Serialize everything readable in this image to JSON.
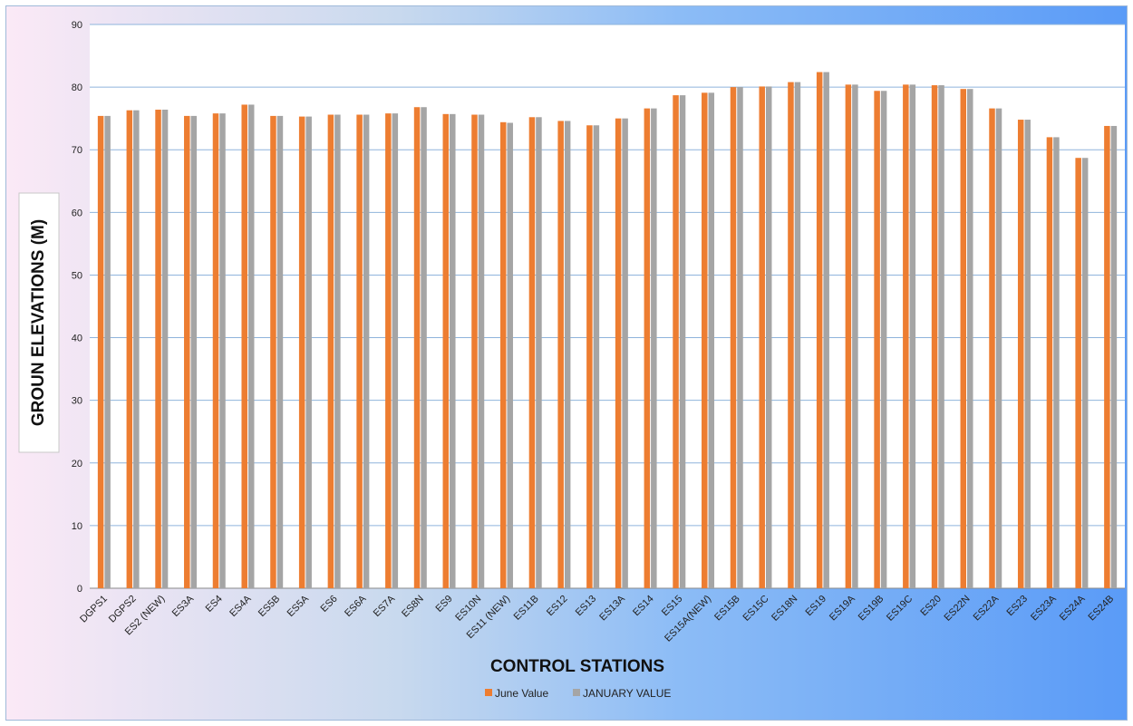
{
  "chart_data": {
    "type": "bar",
    "categories": [
      "DGPS1",
      "DGPS2",
      "ES2 (NEW)",
      "ES3A",
      "ES4",
      "ES4A",
      "ES5B",
      "ES5A",
      "ES6",
      "ES6A",
      "ES7A",
      "ES8N",
      "ES9",
      "ES10N",
      "ES11 (NEW)",
      "ES11B",
      "ES12",
      "ES13",
      "ES13A",
      "ES14",
      "ES15",
      "ES15A(NEW)",
      "ES15B",
      "ES15C",
      "ES18N",
      "ES19",
      "ES19A",
      "ES19B",
      "ES19C",
      "ES20",
      "ES22N",
      "ES22A",
      "ES23",
      "ES23A",
      "ES24A",
      "ES24B"
    ],
    "series": [
      {
        "name": "June Value",
        "color": "#ed7d31",
        "values": [
          75.4,
          76.3,
          76.4,
          75.4,
          75.8,
          77.2,
          75.4,
          75.3,
          75.6,
          75.6,
          75.8,
          76.8,
          75.7,
          75.6,
          74.4,
          75.2,
          74.6,
          73.9,
          75.0,
          76.6,
          78.7,
          79.1,
          80.0,
          80.1,
          80.8,
          82.4,
          80.4,
          79.4,
          80.4,
          80.3,
          79.7,
          76.6,
          74.8,
          72.0,
          68.7,
          73.8
        ]
      },
      {
        "name": "JANUARY VALUE",
        "color": "#a5a5a5",
        "values": [
          75.4,
          76.3,
          76.4,
          75.4,
          75.8,
          77.2,
          75.4,
          75.3,
          75.6,
          75.6,
          75.8,
          76.8,
          75.7,
          75.6,
          74.3,
          75.2,
          74.6,
          73.9,
          75.0,
          76.6,
          78.7,
          79.1,
          80.0,
          80.1,
          80.8,
          82.4,
          80.4,
          79.4,
          80.4,
          80.3,
          79.7,
          76.6,
          74.8,
          72.0,
          68.7,
          73.8
        ]
      }
    ],
    "xlabel": "CONTROL STATIONS",
    "ylabel": "GROUN ELEVATIONS (M)",
    "ylim": [
      0,
      90
    ],
    "yticks": [
      0,
      10,
      20,
      30,
      40,
      50,
      60,
      70,
      80,
      90
    ],
    "grid": true,
    "legend": "bottom"
  }
}
